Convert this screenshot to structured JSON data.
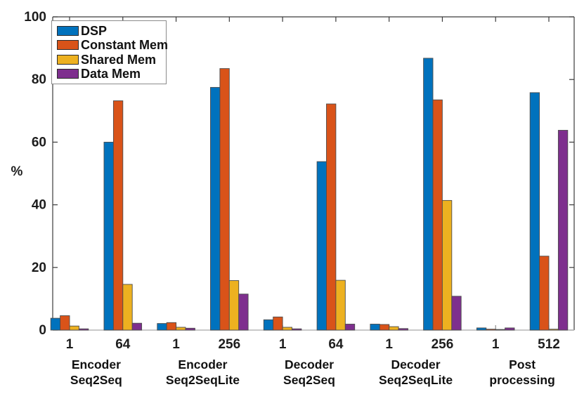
{
  "figure": {
    "background": "#ffffff"
  },
  "chart_data": {
    "type": "bar",
    "title": "",
    "xlabel": "",
    "ylabel": "%",
    "ylim": [
      0,
      100
    ],
    "yticks": [
      "0",
      "20",
      "40",
      "60",
      "80",
      "100"
    ],
    "grid": false,
    "legend_position": "top-left-inside",
    "categories": [
      "1",
      "64",
      "1",
      "256",
      "1",
      "64",
      "1",
      "256",
      "1",
      "512"
    ],
    "group_labels": [
      [
        "Encoder",
        "Seq2Seq"
      ],
      [
        "Encoder",
        "Seq2SeqLite"
      ],
      [
        "Decoder",
        "Seq2Seq"
      ],
      [
        "Decoder",
        "Seq2SeqLite"
      ],
      [
        "Post",
        "processing"
      ]
    ],
    "series": [
      {
        "name": "DSP",
        "color": "#0072BD",
        "values": [
          3.8,
          60.0,
          2.1,
          77.5,
          3.3,
          53.8,
          1.9,
          86.8,
          0.7,
          75.8
        ]
      },
      {
        "name": "Constant Mem",
        "color": "#D95319",
        "values": [
          4.6,
          73.2,
          2.4,
          83.5,
          4.2,
          72.2,
          1.8,
          73.5,
          0.3,
          23.6
        ]
      },
      {
        "name": "Shared Mem",
        "color": "#EDB120",
        "values": [
          1.3,
          14.6,
          0.9,
          15.8,
          0.9,
          15.9,
          1.1,
          41.4,
          0.2,
          0.3
        ]
      },
      {
        "name": "Data Mem",
        "color": "#7E2F8E",
        "values": [
          0.4,
          2.2,
          0.6,
          11.5,
          0.4,
          1.9,
          0.5,
          10.8,
          0.7,
          63.8
        ]
      }
    ],
    "colors": {
      "axis": "#3b3b3b",
      "baseline": "#b5b5b5",
      "x_tick": "#8c8c8c",
      "bar_edge": "#4d4d4d",
      "text": "#1d1d1d",
      "legend_border": "#8c8c8c"
    }
  }
}
